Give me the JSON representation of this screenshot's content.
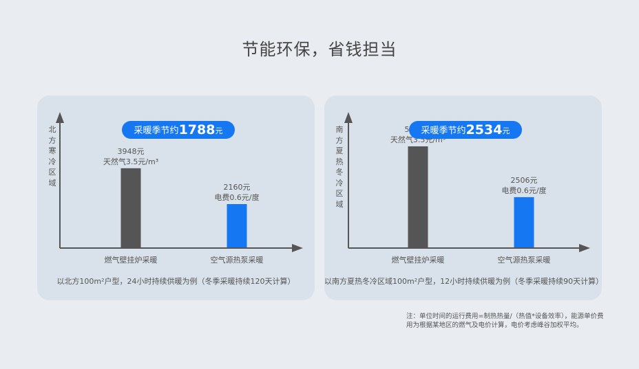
{
  "page": {
    "title": "节能环保，省钱担当"
  },
  "left": {
    "vertical_label": "北方寒冷区域",
    "saving": {
      "prefix": "采暖季节约",
      "amount": "1788",
      "unit": "元"
    },
    "footnote": "以北方100m²户型，24小时持续供暖为例（冬季采暖持续120天计算）"
  },
  "right": {
    "vertical_label": "南方夏热冬冷区域",
    "saving": {
      "prefix": "采暖季节约",
      "amount": "2534",
      "unit": "元"
    },
    "footnote": "以南方夏热冬冷区域100m²户型，12小时持续供暖为例（冬季采暖持续90天计算）"
  },
  "note": "注：单位时间的运行费用=制热热量/（热值*设备效率），能源单价费用为根据某地区的燃气及电价计算，电价考虑峰谷加权平均。",
  "colors": {
    "gas_bar": "#555555",
    "heatpump_bar": "#1677f2",
    "accent": "#1677f2"
  },
  "chart_data": [
    {
      "type": "bar",
      "categories": [
        "燃气壁挂炉采暖",
        "空气源热泵采暖"
      ],
      "values": [
        3948,
        2160
      ],
      "value_labels": [
        "3948元",
        "2160元"
      ],
      "price_labels": [
        "天然气3.5元/m³",
        "电费0.6元/度"
      ],
      "ylabel": "北方寒冷区域",
      "ylim": [
        0,
        6000
      ],
      "grid": false
    },
    {
      "type": "bar",
      "categories": [
        "燃气壁挂炉采暖",
        "空气源热泵采暖"
      ],
      "values": [
        5040,
        2506
      ],
      "value_labels": [
        "5040元",
        "2506元"
      ],
      "price_labels": [
        "天然气3.5元/m³",
        "电费0.6元/度"
      ],
      "ylabel": "南方夏热冬冷区域",
      "ylim": [
        0,
        6000
      ],
      "grid": false
    }
  ]
}
